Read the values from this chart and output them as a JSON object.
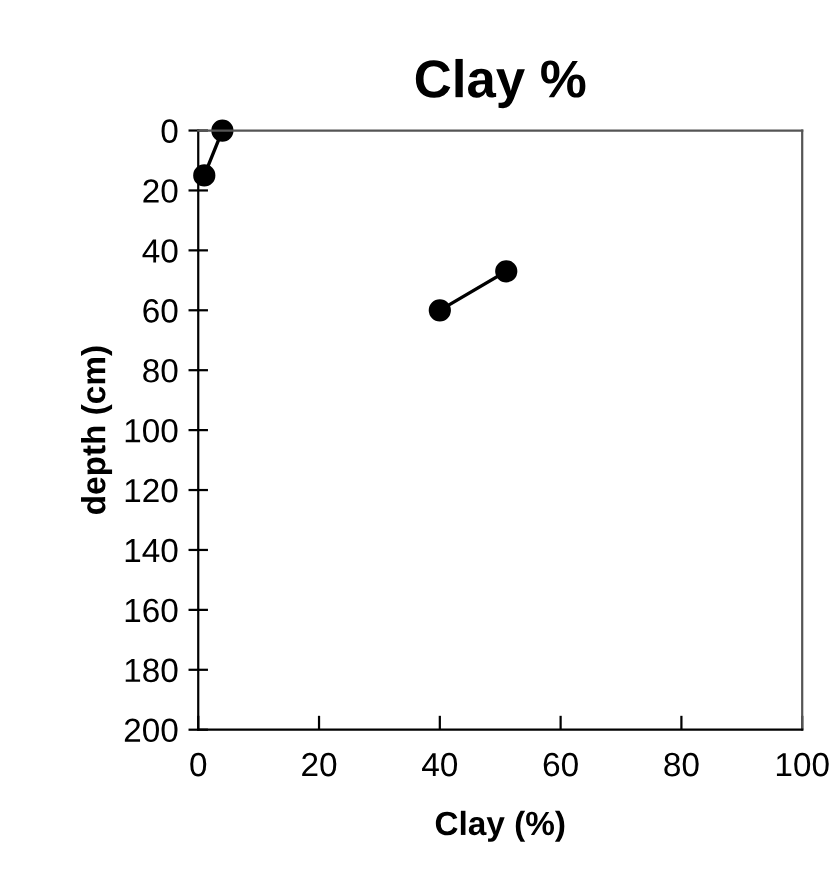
{
  "chart_data": {
    "type": "line",
    "title": "Clay %",
    "xlabel": "Clay (%)",
    "ylabel": "depth (cm)",
    "x": [
      4,
      1,
      null,
      51,
      40
    ],
    "series": [
      {
        "color": "#000000",
        "values": [
          0,
          15,
          null,
          47,
          60
        ]
      }
    ],
    "xlim": [
      0,
      100
    ],
    "xticks": [
      0,
      20,
      40,
      60,
      80,
      100
    ],
    "ylim": [
      200,
      0
    ],
    "yticks": [
      0,
      20,
      40,
      60,
      80,
      100,
      120,
      140,
      160,
      180,
      200
    ],
    "grid": false,
    "legend": false,
    "marker": "circle",
    "line_style": "solid"
  }
}
